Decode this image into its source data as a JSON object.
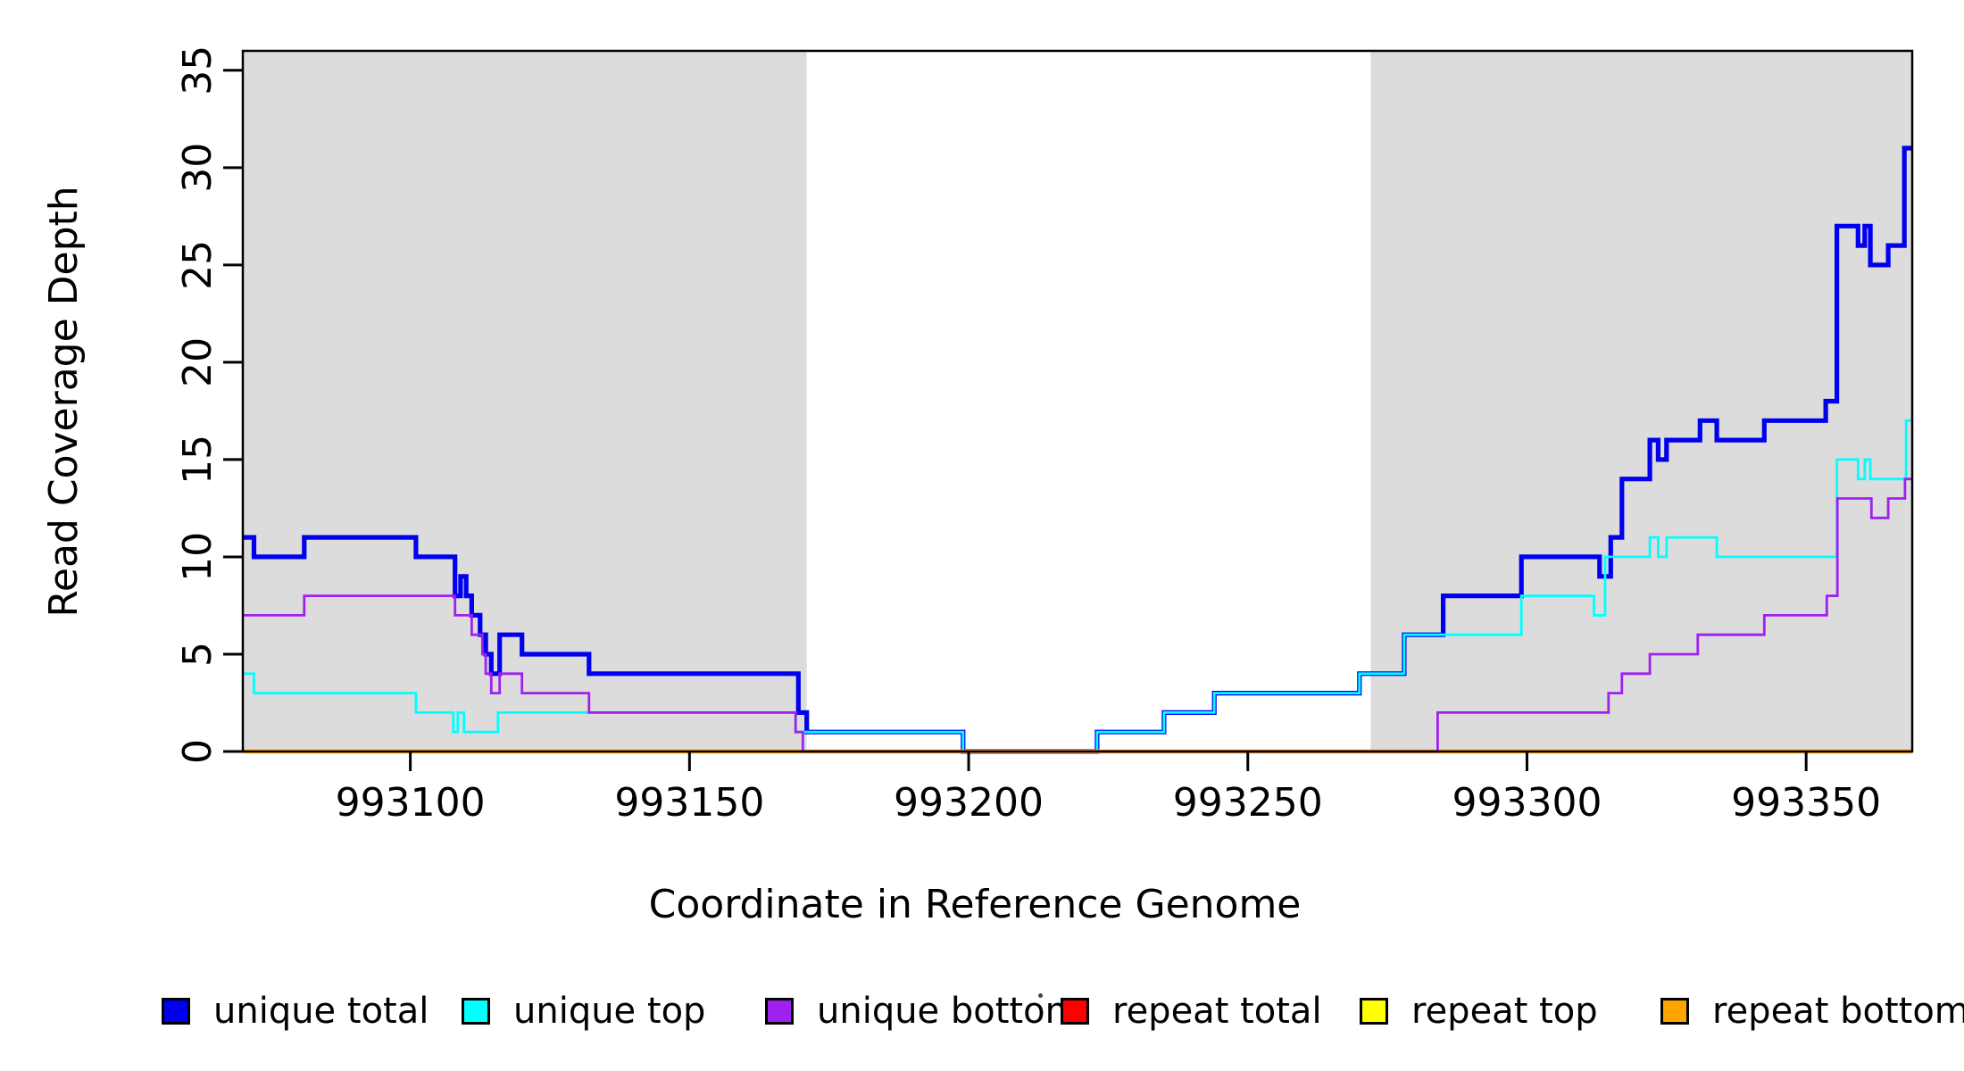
{
  "figure": {
    "x_axis_title": "Coordinate in Reference Genome",
    "y_axis_title": "Read Coverage Depth"
  },
  "chart_data": {
    "type": "line",
    "subtype": "step-coverage-plot",
    "xlabel": "Coordinate in Reference Genome",
    "ylabel": "Read Coverage Depth",
    "xlim": [
      993070,
      993369
    ],
    "ylim": [
      0,
      36
    ],
    "xticks": [
      993100,
      993150,
      993200,
      993250,
      993300,
      993350
    ],
    "yticks": [
      0,
      5,
      10,
      15,
      20,
      25,
      30,
      35
    ],
    "grid": false,
    "background_color": "#ffffff",
    "shaded_region_color": "#DCDCDC",
    "shaded_regions": [
      {
        "from": 993070,
        "to": 993171
      },
      {
        "from": 993272,
        "to": 993369
      }
    ],
    "legend_position": "bottom",
    "series": [
      {
        "name": "unique_total",
        "label": "unique total",
        "color": "#0000EE",
        "points": [
          [
            993070,
            11
          ],
          [
            993072,
            10
          ],
          [
            993081,
            11
          ],
          [
            993101,
            10
          ],
          [
            993108,
            8
          ],
          [
            993109,
            9
          ],
          [
            993110,
            8
          ],
          [
            993111,
            7
          ],
          [
            993112.5,
            6
          ],
          [
            993113.5,
            5
          ],
          [
            993114.5,
            4
          ],
          [
            993116,
            6
          ],
          [
            993120,
            5
          ],
          [
            993132,
            4
          ],
          [
            993169.5,
            2
          ],
          [
            993171,
            1
          ],
          [
            993199,
            0
          ],
          [
            993223,
            1
          ],
          [
            993235,
            2
          ],
          [
            993244,
            3
          ],
          [
            993270,
            4
          ],
          [
            993278,
            6
          ],
          [
            993285,
            8
          ],
          [
            993299,
            10
          ],
          [
            993313,
            9
          ],
          [
            993315,
            11
          ],
          [
            993317,
            14
          ],
          [
            993322,
            16
          ],
          [
            993323.5,
            15
          ],
          [
            993325,
            16
          ],
          [
            993331,
            17
          ],
          [
            993334,
            16
          ],
          [
            993342.5,
            17
          ],
          [
            993353.5,
            18
          ],
          [
            993355.5,
            27
          ],
          [
            993359.3,
            26
          ],
          [
            993360.5,
            27
          ],
          [
            993361.5,
            25
          ],
          [
            993364.7,
            26
          ],
          [
            993367.6,
            31
          ]
        ]
      },
      {
        "name": "unique_top",
        "label": "unique top",
        "color": "#00FFFF",
        "points": [
          [
            993070,
            4
          ],
          [
            993072,
            3
          ],
          [
            993101,
            2
          ],
          [
            993107.7,
            1
          ],
          [
            993108.5,
            2
          ],
          [
            993109.6,
            1
          ],
          [
            993115.7,
            2
          ],
          [
            993169,
            1
          ],
          [
            993199,
            0
          ],
          [
            993223,
            1
          ],
          [
            993235,
            2
          ],
          [
            993244,
            3
          ],
          [
            993270,
            4
          ],
          [
            993278,
            6
          ],
          [
            993299,
            8
          ],
          [
            993312,
            7
          ],
          [
            993314,
            10
          ],
          [
            993322,
            11
          ],
          [
            993323.5,
            10
          ],
          [
            993325,
            11
          ],
          [
            993334,
            10
          ],
          [
            993355.5,
            15
          ],
          [
            993359.3,
            14
          ],
          [
            993360.5,
            15
          ],
          [
            993361.5,
            14
          ],
          [
            993367.9,
            17
          ]
        ]
      },
      {
        "name": "unique_bottom",
        "label": "unique bottom",
        "color": "#A020F0",
        "points": [
          [
            993070,
            7
          ],
          [
            993081,
            8
          ],
          [
            993108,
            7
          ],
          [
            993111,
            6
          ],
          [
            993112.9,
            5
          ],
          [
            993113.5,
            4
          ],
          [
            993114.5,
            3
          ],
          [
            993116,
            4
          ],
          [
            993120,
            3
          ],
          [
            993132,
            2
          ],
          [
            993169,
            1
          ],
          [
            993170.3,
            0
          ],
          [
            993284,
            2
          ],
          [
            993314.6,
            3
          ],
          [
            993317,
            4
          ],
          [
            993322,
            5
          ],
          [
            993330.6,
            6
          ],
          [
            993342.5,
            7
          ],
          [
            993353.7,
            8
          ],
          [
            993355.6,
            13
          ],
          [
            993361.7,
            12
          ],
          [
            993364.7,
            13
          ],
          [
            993367.7,
            14
          ]
        ]
      },
      {
        "name": "repeat_total",
        "label": "repeat total",
        "color": "#FF0000",
        "points": [
          [
            993070,
            0
          ]
        ]
      },
      {
        "name": "repeat_top",
        "label": "repeat top",
        "color": "#FFFF00",
        "points": [
          [
            993070,
            0
          ]
        ]
      },
      {
        "name": "repeat_bottom",
        "label": "repeat bottom",
        "color": "#FFA500",
        "points": [
          [
            993070,
            0
          ]
        ]
      }
    ]
  },
  "legend": {
    "separator_dot": ""
  }
}
